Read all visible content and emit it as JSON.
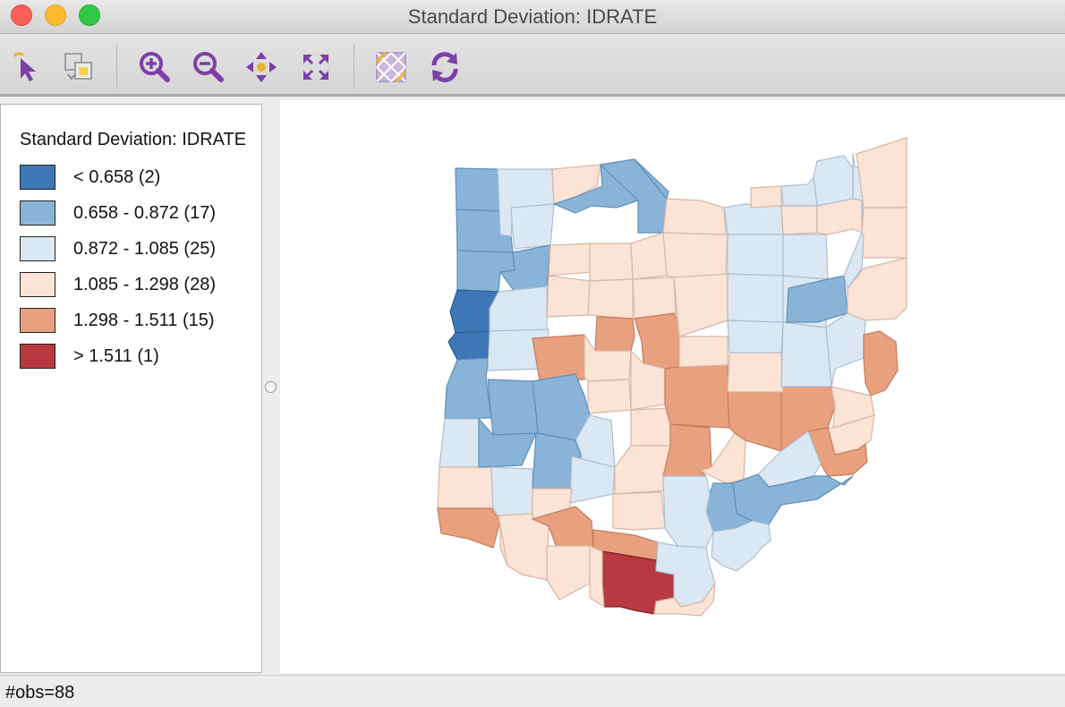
{
  "window": {
    "title": "Standard Deviation: IDRATE"
  },
  "toolbar": {
    "tools": [
      {
        "name": "select-tool",
        "icon": "pointer-arrow-icon"
      },
      {
        "name": "selection-mode-tool",
        "icon": "selection-copy-icon"
      },
      {
        "name": "zoom-in-tool",
        "icon": "zoom-in-icon"
      },
      {
        "name": "zoom-out-tool",
        "icon": "zoom-out-icon"
      },
      {
        "name": "pan-tool",
        "icon": "pan-arrows-icon"
      },
      {
        "name": "fit-extent-tool",
        "icon": "full-extent-icon"
      },
      {
        "name": "basemap-tool",
        "icon": "basemap-grid-icon"
      },
      {
        "name": "refresh-tool",
        "icon": "refresh-icon"
      }
    ]
  },
  "legend": {
    "title": "Standard Deviation: IDRATE",
    "items": [
      {
        "label": "< 0.658 (2)",
        "color": "#3e77b6"
      },
      {
        "label": "0.658 - 0.872 (17)",
        "color": "#89b4d8"
      },
      {
        "label": "0.872 - 1.085 (25)",
        "color": "#dbe8f3"
      },
      {
        "label": "1.085 - 1.298 (28)",
        "color": "#fbe3d6"
      },
      {
        "label": "1.298 - 1.511 (15)",
        "color": "#e9a07e"
      },
      {
        "label": "> 1.511 (1)",
        "color": "#b83a3f"
      }
    ]
  },
  "status": {
    "text": "#obs=88"
  }
}
